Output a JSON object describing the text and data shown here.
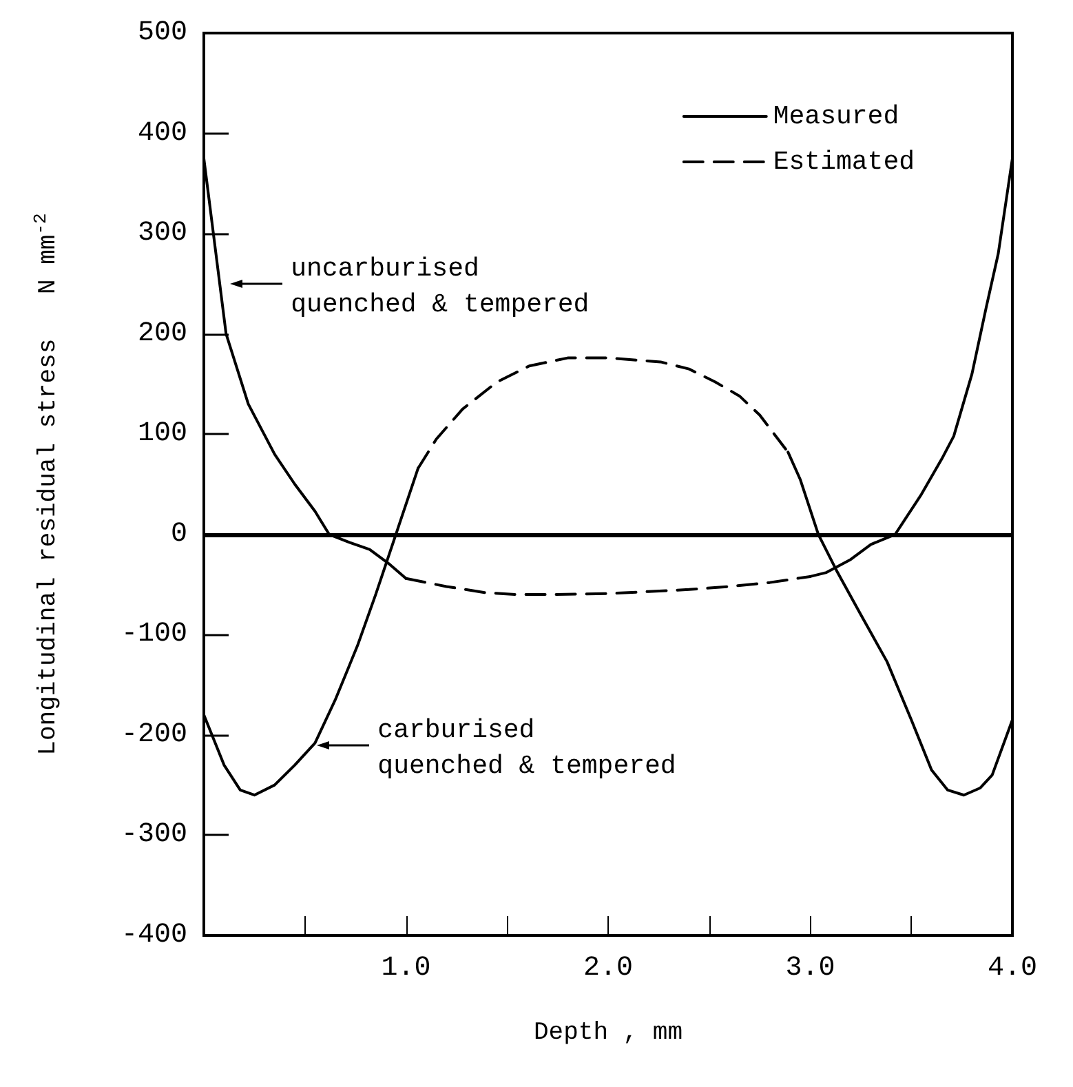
{
  "chart_data": {
    "type": "line",
    "xlabel": "Depth , mm",
    "ylabel": "Longitudinal residual stress   N mm$^{-2}$",
    "xlim": [
      0,
      4.0
    ],
    "xticks": [
      {
        "value": 0.5,
        "label": null
      },
      {
        "value": 1.0,
        "label": "1.0"
      },
      {
        "value": 1.5,
        "label": null
      },
      {
        "value": 2.0,
        "label": "2.0"
      },
      {
        "value": 2.5,
        "label": null
      },
      {
        "value": 3.0,
        "label": "3.0"
      },
      {
        "value": 3.5,
        "label": null
      },
      {
        "value": 4.0,
        "label": "4.0"
      }
    ],
    "ylim": [
      -400,
      500
    ],
    "yticks": [
      -400,
      -300,
      -200,
      -100,
      0,
      100,
      200,
      300,
      400,
      500
    ],
    "grid": false,
    "legend": "top right",
    "marker": "none",
    "ref_lines": [
      {
        "axis": "y",
        "value": 0,
        "label": null
      }
    ],
    "annotations": [
      "uncarburised\nquenched & tempered",
      "carburised\nquenched & tempered"
    ],
    "series": [
      {
        "name": "Measured",
        "color": "#000000",
        "line_style": "solid",
        "x": [
          0,
          0.11,
          0.22,
          0.35,
          0.45,
          0.55,
          0.62,
          0.72,
          0.82,
          0.92,
          1.0,
          null,
          3.0,
          3.08,
          3.2,
          3.3,
          3.42,
          3.55,
          3.65,
          3.71,
          3.8,
          3.87,
          3.93,
          4.0
        ],
        "values": [
          375,
          200,
          130,
          80,
          50,
          23,
          0,
          -8,
          -15,
          -30,
          -44,
          null,
          -42,
          -38,
          -25,
          -10,
          0,
          40,
          75,
          98,
          160,
          226,
          280,
          375
        ]
      },
      {
        "name": "Estimated",
        "color": "#000000",
        "line_style": "dashed",
        "x": [
          1.0,
          1.2,
          1.39,
          1.55,
          1.72,
          2.0,
          2.2,
          2.4,
          2.6,
          2.8,
          3.0
        ],
        "values": [
          -44,
          -52,
          -58,
          -60,
          -60,
          -59,
          -57,
          -55,
          -52,
          -48,
          -42
        ]
      },
      {
        "color": "#000000",
        "line_style": "solid",
        "x": [
          0,
          0.1,
          0.18,
          0.25,
          0.35,
          0.45,
          0.55,
          0.65,
          0.76,
          0.85,
          0.95,
          1.06,
          null,
          2.89,
          2.95,
          3.04,
          3.13,
          3.25,
          3.38,
          3.5,
          3.6,
          3.68,
          3.76,
          3.84,
          3.9,
          4.0
        ],
        "values": [
          -180,
          -230,
          -255,
          -260,
          -250,
          -230,
          -208,
          -165,
          -111,
          -60,
          0,
          66,
          null,
          82,
          55,
          0,
          -36,
          -80,
          -127,
          -185,
          -235,
          -255,
          -260,
          -253,
          -240,
          -185
        ]
      },
      {
        "color": "#000000",
        "line_style": "dashed",
        "x": [
          1.06,
          1.15,
          1.28,
          1.45,
          1.61,
          1.8,
          2.0,
          2.26,
          2.4,
          2.53,
          2.65,
          2.75,
          2.89
        ],
        "values": [
          66,
          95,
          125,
          152,
          168,
          176,
          176,
          172,
          165,
          152,
          138,
          119,
          82
        ]
      }
    ]
  }
}
